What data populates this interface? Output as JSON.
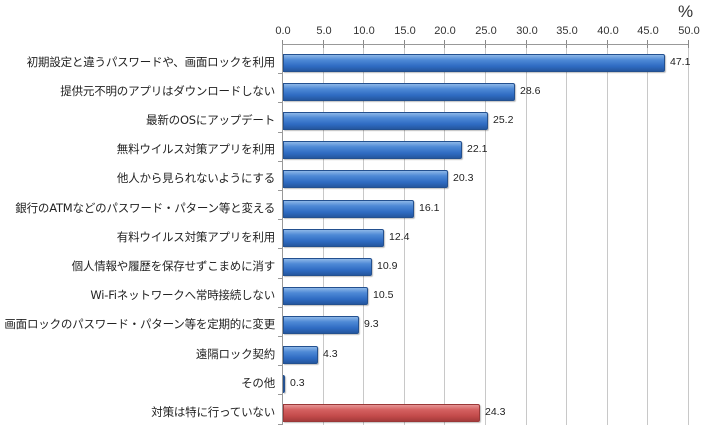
{
  "chart_data": {
    "type": "bar",
    "orientation": "horizontal",
    "title": "",
    "xlabel": "",
    "ylabel": "",
    "unit_label": "%",
    "xlim": [
      0,
      50
    ],
    "x_ticks": [
      "0.0",
      "5.0",
      "10.0",
      "15.0",
      "20.0",
      "25.0",
      "30.0",
      "35.0",
      "40.0",
      "45.0",
      "50.0"
    ],
    "x_axis_position": "top",
    "grid": true,
    "legend": null,
    "categories": [
      "初期設定と違うパスワードや、画面ロックを利用",
      "提供元不明のアプリはダウンロードしない",
      "最新のOSにアップデート",
      "無料ウイルス対策アプリを利用",
      "他人から見られないようにする",
      "銀行のATMなどのパスワード・パターン等と変える",
      "有料ウイルス対策アプリを利用",
      "個人情報や履歴を保存せずこまめに消す",
      "Wi-Fiネットワークへ常時接続しない",
      "画面ロックのパスワード・パターン等を定期的に変更",
      "遠隔ロック契約",
      "その他",
      "対策は特に行っていない"
    ],
    "values": [
      47.1,
      28.6,
      25.2,
      22.1,
      20.3,
      16.1,
      12.4,
      10.9,
      10.5,
      9.3,
      4.3,
      0.3,
      24.3
    ],
    "value_labels": [
      "47.1",
      "28.6",
      "25.2",
      "22.1",
      "20.3",
      "16.1",
      "12.4",
      "10.9",
      "10.5",
      "9.3",
      "4.3",
      "0.3",
      "24.3"
    ],
    "bar_colors": [
      "blue",
      "blue",
      "blue",
      "blue",
      "blue",
      "blue",
      "blue",
      "blue",
      "blue",
      "blue",
      "blue",
      "blue",
      "red"
    ],
    "colors": {
      "blue": "#2f6bc2",
      "red": "#c24a4a"
    }
  }
}
